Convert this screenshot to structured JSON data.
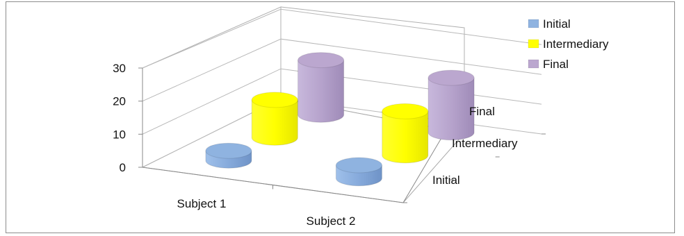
{
  "chart_data": {
    "type": "bar",
    "style": "3d-cylinder",
    "categories": [
      "Subject 1",
      "Subject 2"
    ],
    "series": [
      {
        "name": "Initial",
        "values": [
          3,
          4
        ],
        "color": "#8fb3e0"
      },
      {
        "name": "Intermediary",
        "values": [
          12,
          14
        ],
        "color": "#ffff00"
      },
      {
        "name": "Final",
        "values": [
          18,
          18
        ],
        "color": "#bba7cf"
      }
    ],
    "depth_labels": [
      "Initial",
      "Intermediary",
      "Final"
    ],
    "y_ticks": [
      "0",
      "10",
      "20",
      "30"
    ],
    "ylim": [
      0,
      30
    ],
    "legend_position": "top-right",
    "grid": true
  }
}
